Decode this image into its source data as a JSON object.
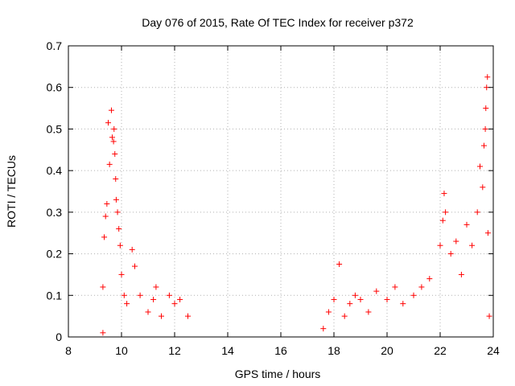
{
  "chart_data": {
    "type": "scatter",
    "title": "Day 076 of 2015, Rate Of TEC Index for receiver p372",
    "xlabel": "GPS time / hours",
    "ylabel": "ROTI / TECUs",
    "xlim": [
      8,
      24
    ],
    "ylim": [
      0,
      0.7
    ],
    "xticks": [
      "8",
      "10",
      "12",
      "14",
      "16",
      "18",
      "20",
      "22",
      "24"
    ],
    "yticks": [
      "0",
      "0.1",
      "0.2",
      "0.3",
      "0.4",
      "0.5",
      "0.6",
      "0.7"
    ],
    "grid": true,
    "marker": "+",
    "colors": {
      "series": "#ff0000",
      "grid": "#b0b0b0",
      "axis": "#000000"
    },
    "series": [
      {
        "name": "",
        "points": [
          [
            9.3,
            0.01
          ],
          [
            9.3,
            0.12
          ],
          [
            9.35,
            0.24
          ],
          [
            9.4,
            0.29
          ],
          [
            9.45,
            0.32
          ],
          [
            9.5,
            0.515
          ],
          [
            9.55,
            0.415
          ],
          [
            9.62,
            0.545
          ],
          [
            9.65,
            0.48
          ],
          [
            9.7,
            0.47
          ],
          [
            9.72,
            0.5
          ],
          [
            9.75,
            0.44
          ],
          [
            9.78,
            0.38
          ],
          [
            9.8,
            0.33
          ],
          [
            9.85,
            0.3
          ],
          [
            9.9,
            0.26
          ],
          [
            9.95,
            0.22
          ],
          [
            10.0,
            0.15
          ],
          [
            10.1,
            0.1
          ],
          [
            10.2,
            0.08
          ],
          [
            10.4,
            0.21
          ],
          [
            10.5,
            0.17
          ],
          [
            10.7,
            0.1
          ],
          [
            11.0,
            0.06
          ],
          [
            11.2,
            0.09
          ],
          [
            11.3,
            0.12
          ],
          [
            11.5,
            0.05
          ],
          [
            11.8,
            0.1
          ],
          [
            12.0,
            0.08
          ],
          [
            12.2,
            0.09
          ],
          [
            12.5,
            0.05
          ],
          [
            17.6,
            0.02
          ],
          [
            17.8,
            0.06
          ],
          [
            18.0,
            0.09
          ],
          [
            18.2,
            0.175
          ],
          [
            18.4,
            0.05
          ],
          [
            18.6,
            0.08
          ],
          [
            18.8,
            0.1
          ],
          [
            19.0,
            0.09
          ],
          [
            19.3,
            0.06
          ],
          [
            19.6,
            0.11
          ],
          [
            20.0,
            0.09
          ],
          [
            20.3,
            0.12
          ],
          [
            20.6,
            0.08
          ],
          [
            21.0,
            0.1
          ],
          [
            21.3,
            0.12
          ],
          [
            21.6,
            0.14
          ],
          [
            22.0,
            0.22
          ],
          [
            22.1,
            0.28
          ],
          [
            22.15,
            0.345
          ],
          [
            22.2,
            0.3
          ],
          [
            22.4,
            0.2
          ],
          [
            22.6,
            0.23
          ],
          [
            22.8,
            0.15
          ],
          [
            23.0,
            0.27
          ],
          [
            23.2,
            0.22
          ],
          [
            23.4,
            0.3
          ],
          [
            23.5,
            0.41
          ],
          [
            23.6,
            0.36
          ],
          [
            23.65,
            0.46
          ],
          [
            23.7,
            0.5
          ],
          [
            23.72,
            0.55
          ],
          [
            23.75,
            0.6
          ],
          [
            23.78,
            0.625
          ],
          [
            23.8,
            0.25
          ],
          [
            23.85,
            0.05
          ]
        ]
      }
    ]
  }
}
